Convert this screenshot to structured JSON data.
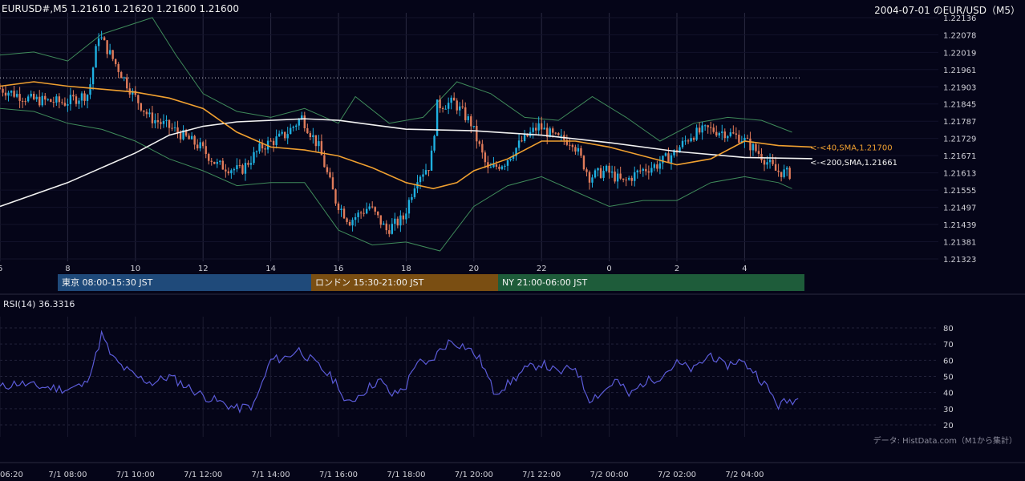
{
  "header": {
    "symbol_ohlc": "EURUSD#,M5 1.21610 1.21620 1.21600 1.21600",
    "title": "2004-07-01 のEUR/USD（M5）"
  },
  "sessions": [
    {
      "label": "東京 08:00-15:30 JST",
      "color": "#1f4a7a"
    },
    {
      "label": "ロンドン 15:30-21:00 JST",
      "color": "#7a4e12"
    },
    {
      "label": "NY 21:00-06:00 JST",
      "color": "#1e5c3a"
    }
  ],
  "rsi_header": "RSI(14) 36.3316",
  "source_note": "データ: HistData.com（M1から集計）",
  "colors": {
    "background": "#050518",
    "up_candle": "#1fb0e0",
    "down_candle": "#e07b5a",
    "sma40": "#f0a030",
    "sma200": "#f2f2f2",
    "bollinger": "#3f8a5a",
    "rsi": "#5b5bd8"
  },
  "chart_data": [
    {
      "type": "candlestick",
      "title": "",
      "ylim": [
        1.21323,
        1.22136
      ],
      "y_ticks": [
        "1.22136",
        "1.22078",
        "1.22019",
        "1.21961",
        "1.21903",
        "1.21845",
        "1.21787",
        "1.21729",
        "1.21671",
        "1.21613",
        "1.21555",
        "1.21497",
        "1.21439",
        "1.21381",
        "1.21323"
      ],
      "x_ticks": [
        "6",
        "8",
        "10",
        "12",
        "14",
        "16",
        "18",
        "20",
        "22",
        "0",
        "2",
        "4"
      ],
      "dotted_level": 1.21933,
      "annotations": [
        "<-<40,SMA,1.21700",
        "<-<200,SMA,1.21661"
      ],
      "sma40_last": 1.217,
      "sma200_last": 1.21661,
      "price_points": [
        {
          "hour": 6.0,
          "price": 1.219
        },
        {
          "hour": 7.0,
          "price": 1.2186
        },
        {
          "hour": 8.0,
          "price": 1.2185
        },
        {
          "hour": 8.7,
          "price": 1.2188
        },
        {
          "hour": 9.0,
          "price": 1.2208
        },
        {
          "hour": 9.5,
          "price": 1.2198
        },
        {
          "hour": 10.0,
          "price": 1.2188
        },
        {
          "hour": 10.5,
          "price": 1.218
        },
        {
          "hour": 11.2,
          "price": 1.2176
        },
        {
          "hour": 12.0,
          "price": 1.217
        },
        {
          "hour": 12.5,
          "price": 1.2164
        },
        {
          "hour": 13.2,
          "price": 1.2162
        },
        {
          "hour": 13.8,
          "price": 1.217
        },
        {
          "hour": 14.5,
          "price": 1.2174
        },
        {
          "hour": 15.0,
          "price": 1.218
        },
        {
          "hour": 15.5,
          "price": 1.217
        },
        {
          "hour": 16.0,
          "price": 1.2152
        },
        {
          "hour": 16.4,
          "price": 1.2145
        },
        {
          "hour": 17.0,
          "price": 1.215
        },
        {
          "hour": 17.5,
          "price": 1.2142
        },
        {
          "hour": 18.0,
          "price": 1.2146
        },
        {
          "hour": 18.4,
          "price": 1.216
        },
        {
          "hour": 18.8,
          "price": 1.2164
        },
        {
          "hour": 19.0,
          "price": 1.2184
        },
        {
          "hour": 19.5,
          "price": 1.2185
        },
        {
          "hour": 20.0,
          "price": 1.2178
        },
        {
          "hour": 20.5,
          "price": 1.2162
        },
        {
          "hour": 21.0,
          "price": 1.2165
        },
        {
          "hour": 21.5,
          "price": 1.2172
        },
        {
          "hour": 22.0,
          "price": 1.2177
        },
        {
          "hour": 22.5,
          "price": 1.2173
        },
        {
          "hour": 23.0,
          "price": 1.2172
        },
        {
          "hour": 23.5,
          "price": 1.216
        },
        {
          "hour": 24.0,
          "price": 1.2162
        },
        {
          "hour": 24.5,
          "price": 1.2158
        },
        {
          "hour": 25.0,
          "price": 1.2162
        },
        {
          "hour": 25.5,
          "price": 1.2164
        },
        {
          "hour": 26.0,
          "price": 1.2168
        },
        {
          "hour": 26.5,
          "price": 1.2174
        },
        {
          "hour": 27.0,
          "price": 1.2176
        },
        {
          "hour": 27.5,
          "price": 1.2175
        },
        {
          "hour": 28.0,
          "price": 1.2173
        },
        {
          "hour": 28.5,
          "price": 1.2168
        },
        {
          "hour": 29.0,
          "price": 1.2162
        },
        {
          "hour": 29.4,
          "price": 1.2161
        }
      ],
      "sma40": [
        {
          "hour": 6.0,
          "price": 1.21905
        },
        {
          "hour": 7.0,
          "price": 1.2192
        },
        {
          "hour": 8.0,
          "price": 1.21905
        },
        {
          "hour": 9.0,
          "price": 1.21895
        },
        {
          "hour": 10.0,
          "price": 1.21885
        },
        {
          "hour": 11.0,
          "price": 1.21865
        },
        {
          "hour": 12.0,
          "price": 1.2183
        },
        {
          "hour": 13.0,
          "price": 1.2175
        },
        {
          "hour": 14.0,
          "price": 1.217
        },
        {
          "hour": 15.0,
          "price": 1.2169
        },
        {
          "hour": 16.0,
          "price": 1.2167
        },
        {
          "hour": 17.0,
          "price": 1.2163
        },
        {
          "hour": 18.0,
          "price": 1.2158
        },
        {
          "hour": 18.8,
          "price": 1.2156
        },
        {
          "hour": 19.5,
          "price": 1.2158
        },
        {
          "hour": 20.0,
          "price": 1.2162
        },
        {
          "hour": 21.0,
          "price": 1.2166
        },
        {
          "hour": 22.0,
          "price": 1.2172
        },
        {
          "hour": 23.0,
          "price": 1.2172
        },
        {
          "hour": 24.0,
          "price": 1.217
        },
        {
          "hour": 25.0,
          "price": 1.2167
        },
        {
          "hour": 26.0,
          "price": 1.2164
        },
        {
          "hour": 27.0,
          "price": 1.2166
        },
        {
          "hour": 28.0,
          "price": 1.2172
        },
        {
          "hour": 29.0,
          "price": 1.21705
        },
        {
          "hour": 30.0,
          "price": 1.217
        }
      ],
      "sma200": [
        {
          "hour": 6.0,
          "price": 1.215
        },
        {
          "hour": 8.0,
          "price": 1.2158
        },
        {
          "hour": 10.0,
          "price": 1.2168
        },
        {
          "hour": 11.0,
          "price": 1.2174
        },
        {
          "hour": 12.0,
          "price": 1.2177
        },
        {
          "hour": 13.0,
          "price": 1.21785
        },
        {
          "hour": 15.0,
          "price": 1.21795
        },
        {
          "hour": 16.0,
          "price": 1.2179
        },
        {
          "hour": 17.0,
          "price": 1.21775
        },
        {
          "hour": 18.0,
          "price": 1.2176
        },
        {
          "hour": 20.0,
          "price": 1.21755
        },
        {
          "hour": 22.0,
          "price": 1.2174
        },
        {
          "hour": 24.0,
          "price": 1.21715
        },
        {
          "hour": 26.0,
          "price": 1.21685
        },
        {
          "hour": 28.0,
          "price": 1.21665
        },
        {
          "hour": 30.0,
          "price": 1.21661
        }
      ],
      "bollinger_upper": [
        {
          "hour": 6.0,
          "price": 1.2201
        },
        {
          "hour": 7.0,
          "price": 1.2202
        },
        {
          "hour": 8.0,
          "price": 1.2199
        },
        {
          "hour": 9.0,
          "price": 1.2208
        },
        {
          "hour": 10.5,
          "price": 1.22136
        },
        {
          "hour": 11.2,
          "price": 1.2201
        },
        {
          "hour": 12.0,
          "price": 1.2188
        },
        {
          "hour": 13.0,
          "price": 1.2182
        },
        {
          "hour": 14.0,
          "price": 1.218
        },
        {
          "hour": 15.0,
          "price": 1.2183
        },
        {
          "hour": 16.0,
          "price": 1.2178
        },
        {
          "hour": 16.5,
          "price": 1.2187
        },
        {
          "hour": 17.5,
          "price": 1.2178
        },
        {
          "hour": 18.5,
          "price": 1.218
        },
        {
          "hour": 19.5,
          "price": 1.2192
        },
        {
          "hour": 20.5,
          "price": 1.2188
        },
        {
          "hour": 21.5,
          "price": 1.218
        },
        {
          "hour": 22.5,
          "price": 1.2179
        },
        {
          "hour": 23.5,
          "price": 1.2187
        },
        {
          "hour": 24.5,
          "price": 1.218
        },
        {
          "hour": 25.5,
          "price": 1.2172
        },
        {
          "hour": 26.5,
          "price": 1.2178
        },
        {
          "hour": 27.5,
          "price": 1.218
        },
        {
          "hour": 28.5,
          "price": 1.2179
        },
        {
          "hour": 29.4,
          "price": 1.2175
        }
      ],
      "bollinger_lower": [
        {
          "hour": 6.0,
          "price": 1.2183
        },
        {
          "hour": 7.0,
          "price": 1.2182
        },
        {
          "hour": 8.0,
          "price": 1.2178
        },
        {
          "hour": 9.0,
          "price": 1.2176
        },
        {
          "hour": 10.0,
          "price": 1.2172
        },
        {
          "hour": 11.0,
          "price": 1.2166
        },
        {
          "hour": 12.0,
          "price": 1.2162
        },
        {
          "hour": 13.0,
          "price": 1.2157
        },
        {
          "hour": 14.0,
          "price": 1.2158
        },
        {
          "hour": 15.0,
          "price": 1.2158
        },
        {
          "hour": 16.0,
          "price": 1.2142
        },
        {
          "hour": 17.0,
          "price": 1.2137
        },
        {
          "hour": 18.0,
          "price": 1.2138
        },
        {
          "hour": 19.0,
          "price": 1.2135
        },
        {
          "hour": 20.0,
          "price": 1.215
        },
        {
          "hour": 21.0,
          "price": 1.2157
        },
        {
          "hour": 22.0,
          "price": 1.216
        },
        {
          "hour": 23.0,
          "price": 1.2155
        },
        {
          "hour": 24.0,
          "price": 1.215
        },
        {
          "hour": 25.0,
          "price": 1.2152
        },
        {
          "hour": 26.0,
          "price": 1.2152
        },
        {
          "hour": 27.0,
          "price": 1.2158
        },
        {
          "hour": 28.0,
          "price": 1.216
        },
        {
          "hour": 29.0,
          "price": 1.2158
        },
        {
          "hour": 29.4,
          "price": 1.2156
        }
      ]
    },
    {
      "type": "line",
      "title": "RSI(14) 36.3316",
      "ylim": [
        20,
        80
      ],
      "y_ticks": [
        80,
        70,
        60,
        50,
        40,
        30,
        20
      ],
      "x_ticks": [
        "06:20",
        "7/1 08:00",
        "7/1 10:00",
        "7/1 12:00",
        "7/1 14:00",
        "7/1 16:00",
        "7/1 18:00",
        "7/1 20:00",
        "7/1 22:00",
        "7/2 00:00",
        "7/2 02:00",
        "7/2 04:00"
      ],
      "series": [
        {
          "name": "RSI(14)",
          "values": [
            {
              "hour": 6.0,
              "value": 43
            },
            {
              "hour": 6.5,
              "value": 46
            },
            {
              "hour": 7.0,
              "value": 44
            },
            {
              "hour": 7.5,
              "value": 43
            },
            {
              "hour": 8.0,
              "value": 42
            },
            {
              "hour": 8.5,
              "value": 45
            },
            {
              "hour": 8.8,
              "value": 60
            },
            {
              "hour": 9.0,
              "value": 76
            },
            {
              "hour": 9.3,
              "value": 62
            },
            {
              "hour": 9.6,
              "value": 56
            },
            {
              "hour": 10.0,
              "value": 50
            },
            {
              "hour": 10.5,
              "value": 46
            },
            {
              "hour": 11.0,
              "value": 50
            },
            {
              "hour": 11.5,
              "value": 44
            },
            {
              "hour": 12.0,
              "value": 38
            },
            {
              "hour": 12.5,
              "value": 34
            },
            {
              "hour": 13.0,
              "value": 30
            },
            {
              "hour": 13.5,
              "value": 32
            },
            {
              "hour": 14.0,
              "value": 60
            },
            {
              "hour": 14.5,
              "value": 62
            },
            {
              "hour": 14.8,
              "value": 67
            },
            {
              "hour": 15.2,
              "value": 60
            },
            {
              "hour": 15.6,
              "value": 53
            },
            {
              "hour": 16.0,
              "value": 45
            },
            {
              "hour": 16.2,
              "value": 32
            },
            {
              "hour": 16.7,
              "value": 40
            },
            {
              "hour": 17.2,
              "value": 48
            },
            {
              "hour": 17.6,
              "value": 38
            },
            {
              "hour": 18.0,
              "value": 44
            },
            {
              "hour": 18.3,
              "value": 60
            },
            {
              "hour": 18.6,
              "value": 56
            },
            {
              "hour": 19.0,
              "value": 66
            },
            {
              "hour": 19.3,
              "value": 72
            },
            {
              "hour": 19.8,
              "value": 68
            },
            {
              "hour": 20.2,
              "value": 60
            },
            {
              "hour": 20.6,
              "value": 40
            },
            {
              "hour": 21.0,
              "value": 45
            },
            {
              "hour": 21.5,
              "value": 54
            },
            {
              "hour": 22.0,
              "value": 58
            },
            {
              "hour": 22.5,
              "value": 52
            },
            {
              "hour": 23.0,
              "value": 56
            },
            {
              "hour": 23.4,
              "value": 36
            },
            {
              "hour": 23.8,
              "value": 40
            },
            {
              "hour": 24.2,
              "value": 48
            },
            {
              "hour": 24.6,
              "value": 38
            },
            {
              "hour": 25.0,
              "value": 46
            },
            {
              "hour": 25.5,
              "value": 50
            },
            {
              "hour": 26.0,
              "value": 58
            },
            {
              "hour": 26.5,
              "value": 54
            },
            {
              "hour": 27.0,
              "value": 64
            },
            {
              "hour": 27.4,
              "value": 56
            },
            {
              "hour": 27.8,
              "value": 60
            },
            {
              "hour": 28.2,
              "value": 55
            },
            {
              "hour": 28.6,
              "value": 45
            },
            {
              "hour": 29.0,
              "value": 32
            },
            {
              "hour": 29.3,
              "value": 35
            },
            {
              "hour": 29.6,
              "value": 36
            }
          ]
        }
      ]
    }
  ]
}
